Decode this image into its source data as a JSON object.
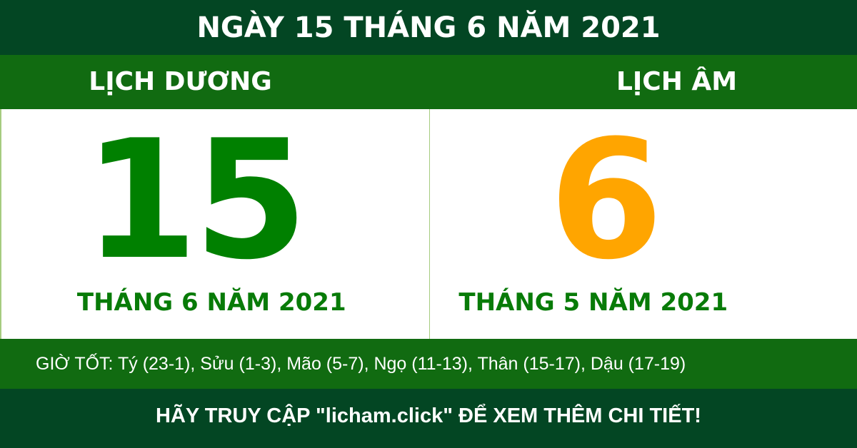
{
  "title": "NGÀY 15 THÁNG 6 NĂM 2021",
  "solar": {
    "heading": "LỊCH DƯƠNG",
    "day": "15",
    "month_year": "THÁNG 6 NĂM 2021"
  },
  "lunar": {
    "heading": "LỊCH ÂM",
    "day": "6",
    "month_year": "THÁNG 5 NĂM 2021"
  },
  "good_hours": "GIỜ TỐT: Tý (23-1), Sửu (1-3), Mão (5-7), Ngọ (11-13), Thân (15-17), Dậu (17-19)",
  "footer": "HÃY TRUY CẬP \"licham.click\" ĐỂ XEM THÊM CHI TIẾT!",
  "colors": {
    "dark_green": "#034623",
    "green_band": "#116b11",
    "solar_number": "#008000",
    "lunar_number": "#ffa500"
  }
}
